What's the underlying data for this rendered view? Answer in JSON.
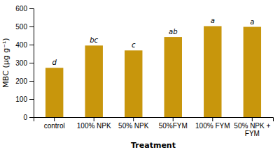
{
  "chart_data": {
    "type": "bar",
    "categories": [
      "control",
      "100% NPK",
      "50% NPK",
      "50%FYM",
      "100% FYM",
      "50% NPK +\nFYM"
    ],
    "values": [
      272,
      395,
      368,
      442,
      502,
      498
    ],
    "color": "#C8960C",
    "annotations": [
      "d",
      "bc",
      "c",
      "ab",
      "a",
      "a"
    ],
    "xlabel": "Treatment",
    "ylabel": "MBC (µg g⁻¹)",
    "ylim": [
      0,
      600
    ],
    "yticks": [
      0,
      100,
      200,
      300,
      400,
      500,
      600
    ],
    "grid": false
  }
}
